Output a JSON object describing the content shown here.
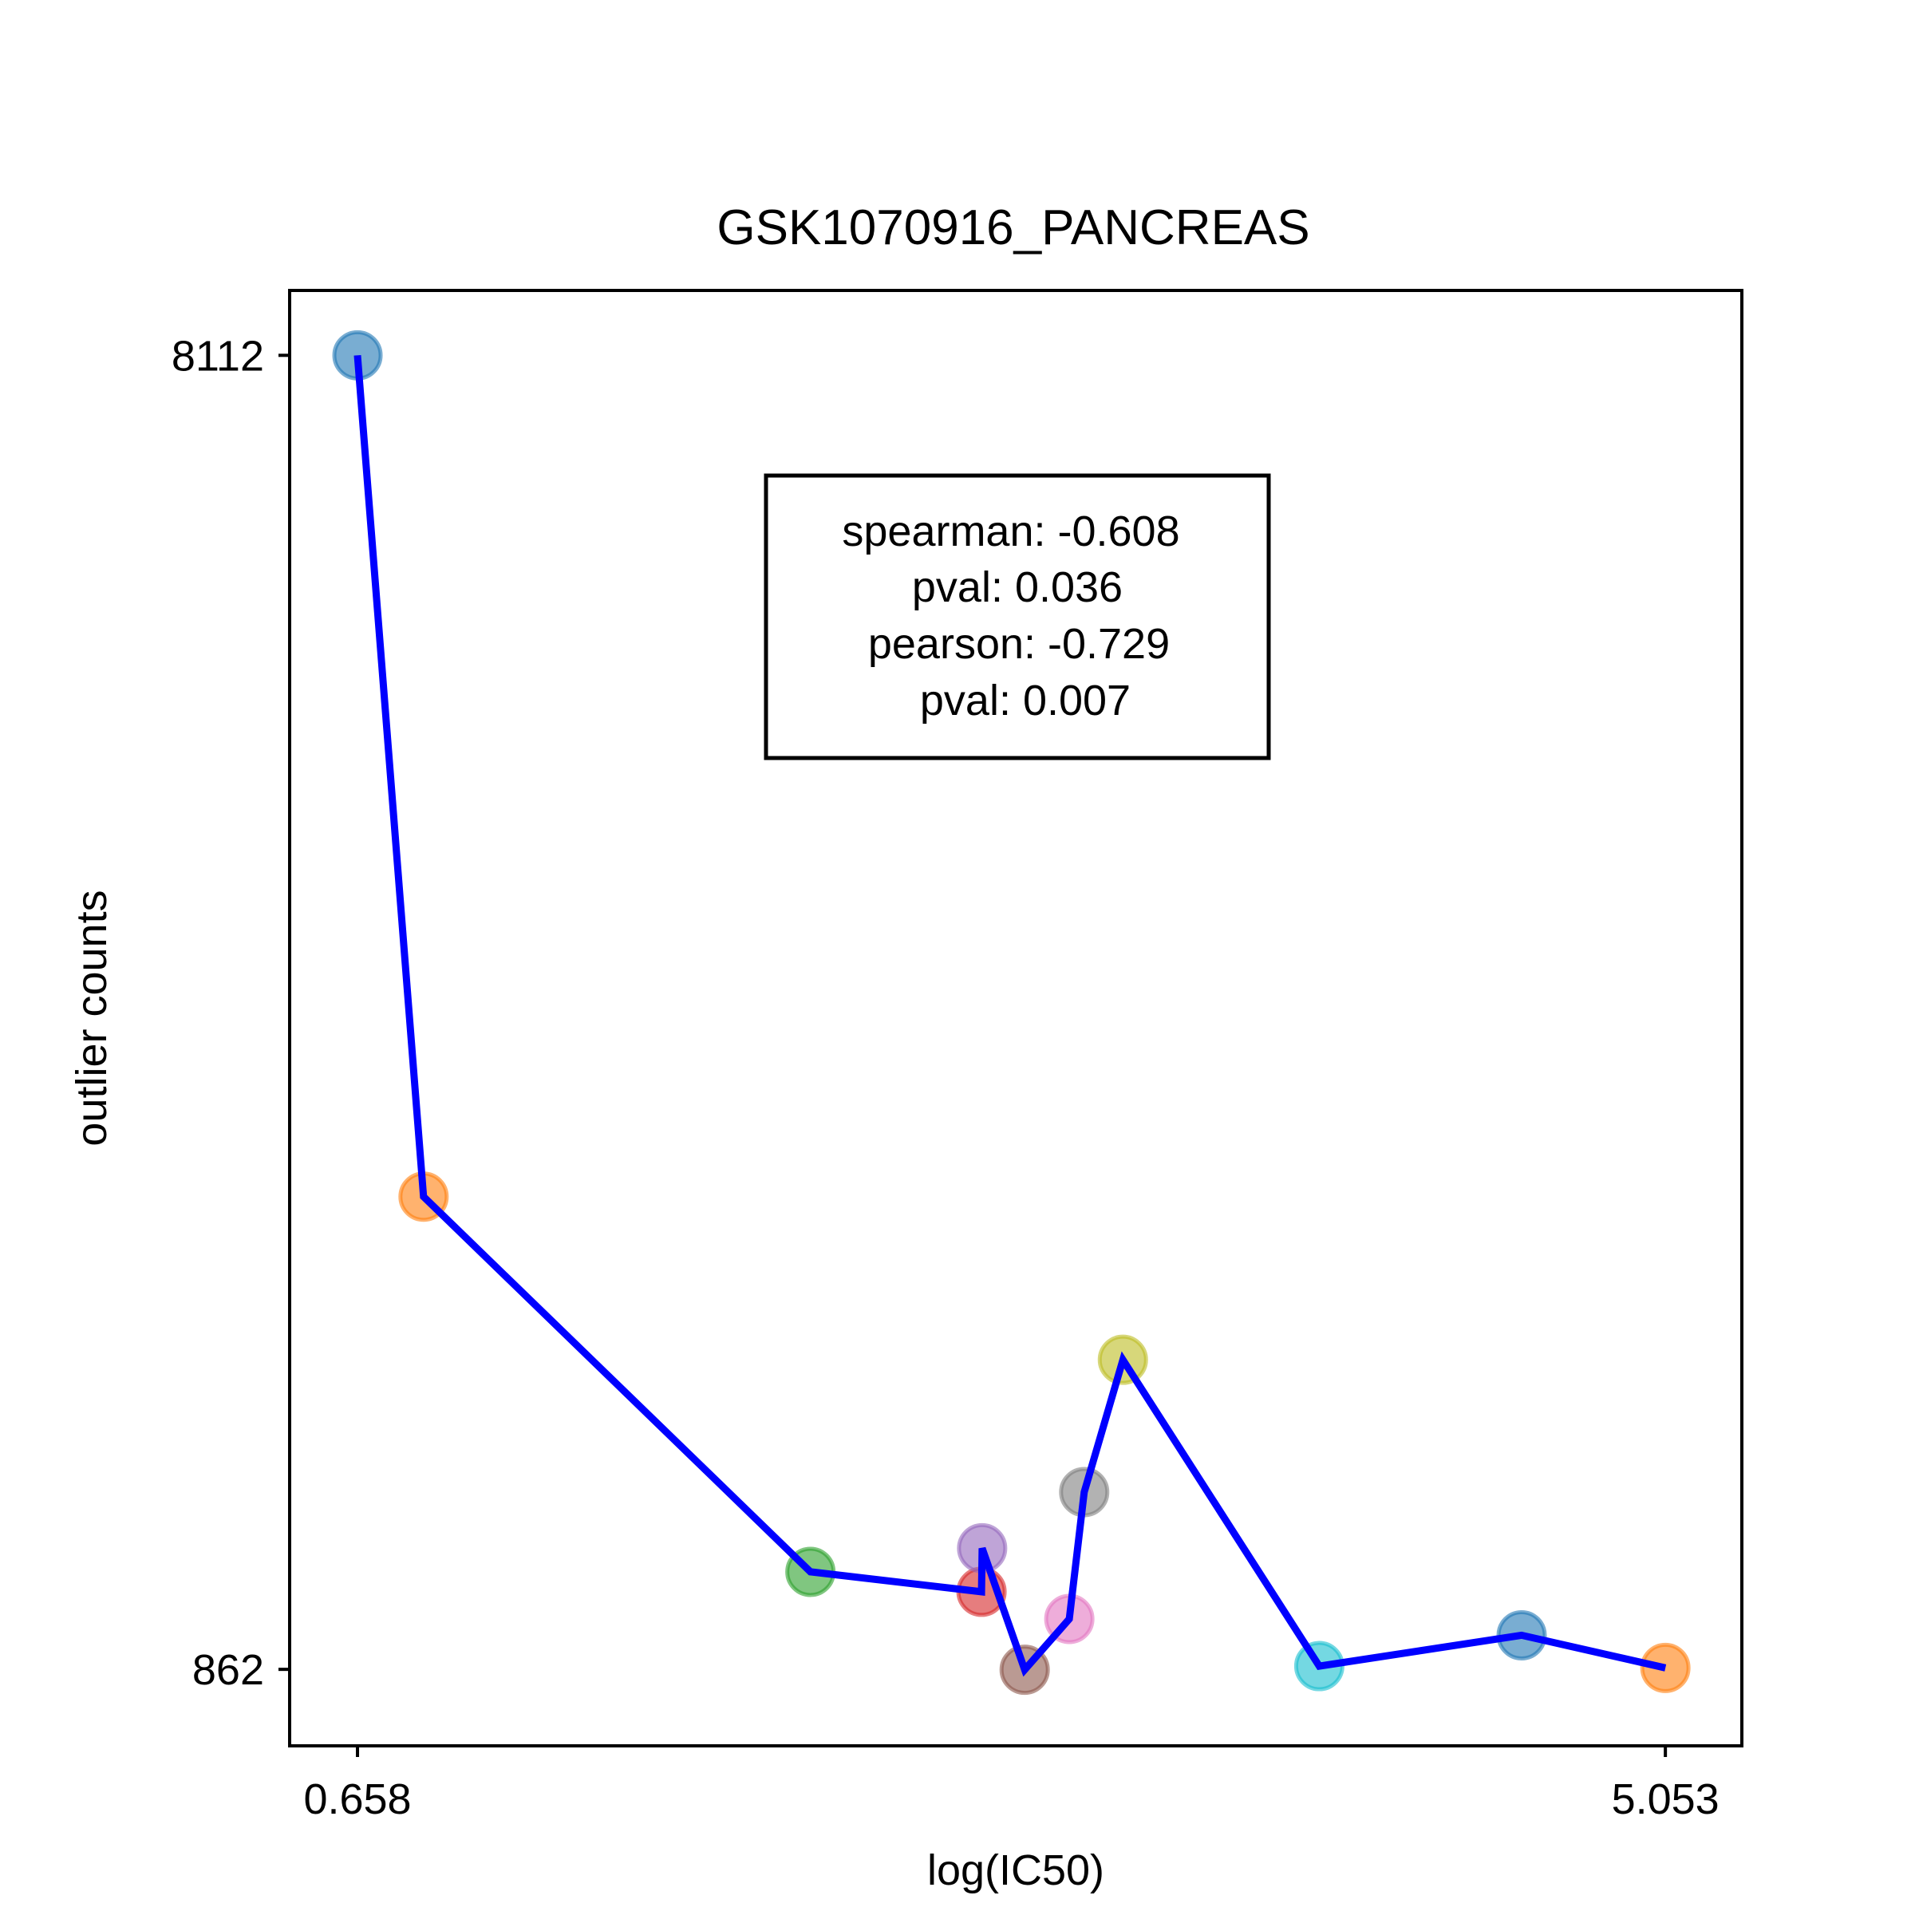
{
  "chart_data": {
    "type": "scatter",
    "title": "GSK1070916_PANCREAS",
    "xlabel": "log(IC50)",
    "ylabel": "outlier counts",
    "xlim": [
      0.43,
      5.31
    ],
    "ylim": [
      440,
      8470
    ],
    "x_ticks": [
      {
        "value": 0.658,
        "label": "0.658"
      },
      {
        "value": 5.053,
        "label": "5.053"
      }
    ],
    "y_ticks": [
      {
        "value": 8112,
        "label": "8112"
      },
      {
        "value": 862,
        "label": "862"
      }
    ],
    "grid": false,
    "connecting_line": true,
    "line_color": "#0000ff",
    "points": [
      {
        "x": 0.658,
        "y": 8112,
        "color": "#1f77b4"
      },
      {
        "x": 0.88,
        "y": 3470,
        "color": "#ff7f0e"
      },
      {
        "x": 2.18,
        "y": 1400,
        "color": "#2ca02c"
      },
      {
        "x": 2.755,
        "y": 1290,
        "color": "#d62728"
      },
      {
        "x": 2.757,
        "y": 1530,
        "color": "#9467bd"
      },
      {
        "x": 2.9,
        "y": 860,
        "color": "#8c564b"
      },
      {
        "x": 3.05,
        "y": 1140,
        "color": "#e377c2"
      },
      {
        "x": 3.1,
        "y": 1840,
        "color": "#7f7f7f"
      },
      {
        "x": 3.23,
        "y": 2570,
        "color": "#bcbd22"
      },
      {
        "x": 3.89,
        "y": 880,
        "color": "#17becf"
      },
      {
        "x": 4.57,
        "y": 1050,
        "color": "#1f77b4"
      },
      {
        "x": 5.053,
        "y": 870,
        "color": "#ff7f0e"
      }
    ],
    "stats": {
      "lines": [
        "spearman: -0.608",
        "pval: 0.036",
        "pearson: -0.729",
        "pval: 0.007"
      ]
    }
  }
}
